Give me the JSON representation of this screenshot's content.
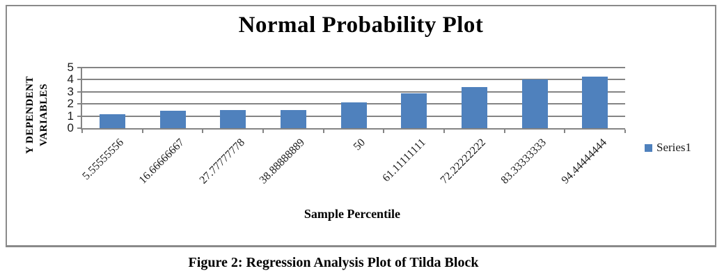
{
  "figure": {
    "caption": "Figure 2: Regression Analysis Plot of Tilda Block"
  },
  "chart_data": {
    "type": "bar",
    "title": "Normal Probability Plot",
    "xlabel": "Sample Percentile",
    "ylabel": "Y DEPENDENT VARIABLES",
    "ylabel_lines": [
      "Y DEPENDENT",
      "VARIABLES"
    ],
    "categories": [
      "5.55555556",
      "16.66666667",
      "27.77777778",
      "38.88888889",
      "50",
      "61.11111111",
      "72.22222222",
      "83.33333333",
      "94.44444444"
    ],
    "series": [
      {
        "name": "Series1",
        "values": [
          1.15,
          1.45,
          1.5,
          1.5,
          2.1,
          2.9,
          3.4,
          4.05,
          4.25
        ]
      }
    ],
    "ylim": [
      0,
      5
    ],
    "yticks": [
      0,
      1,
      2,
      3,
      4,
      5
    ],
    "grid": true,
    "legend_position": "right",
    "colors": {
      "bar": "#4F81BD",
      "gridline": "#848484",
      "frame_border": "#8a8a8a",
      "text": "#000000"
    }
  }
}
